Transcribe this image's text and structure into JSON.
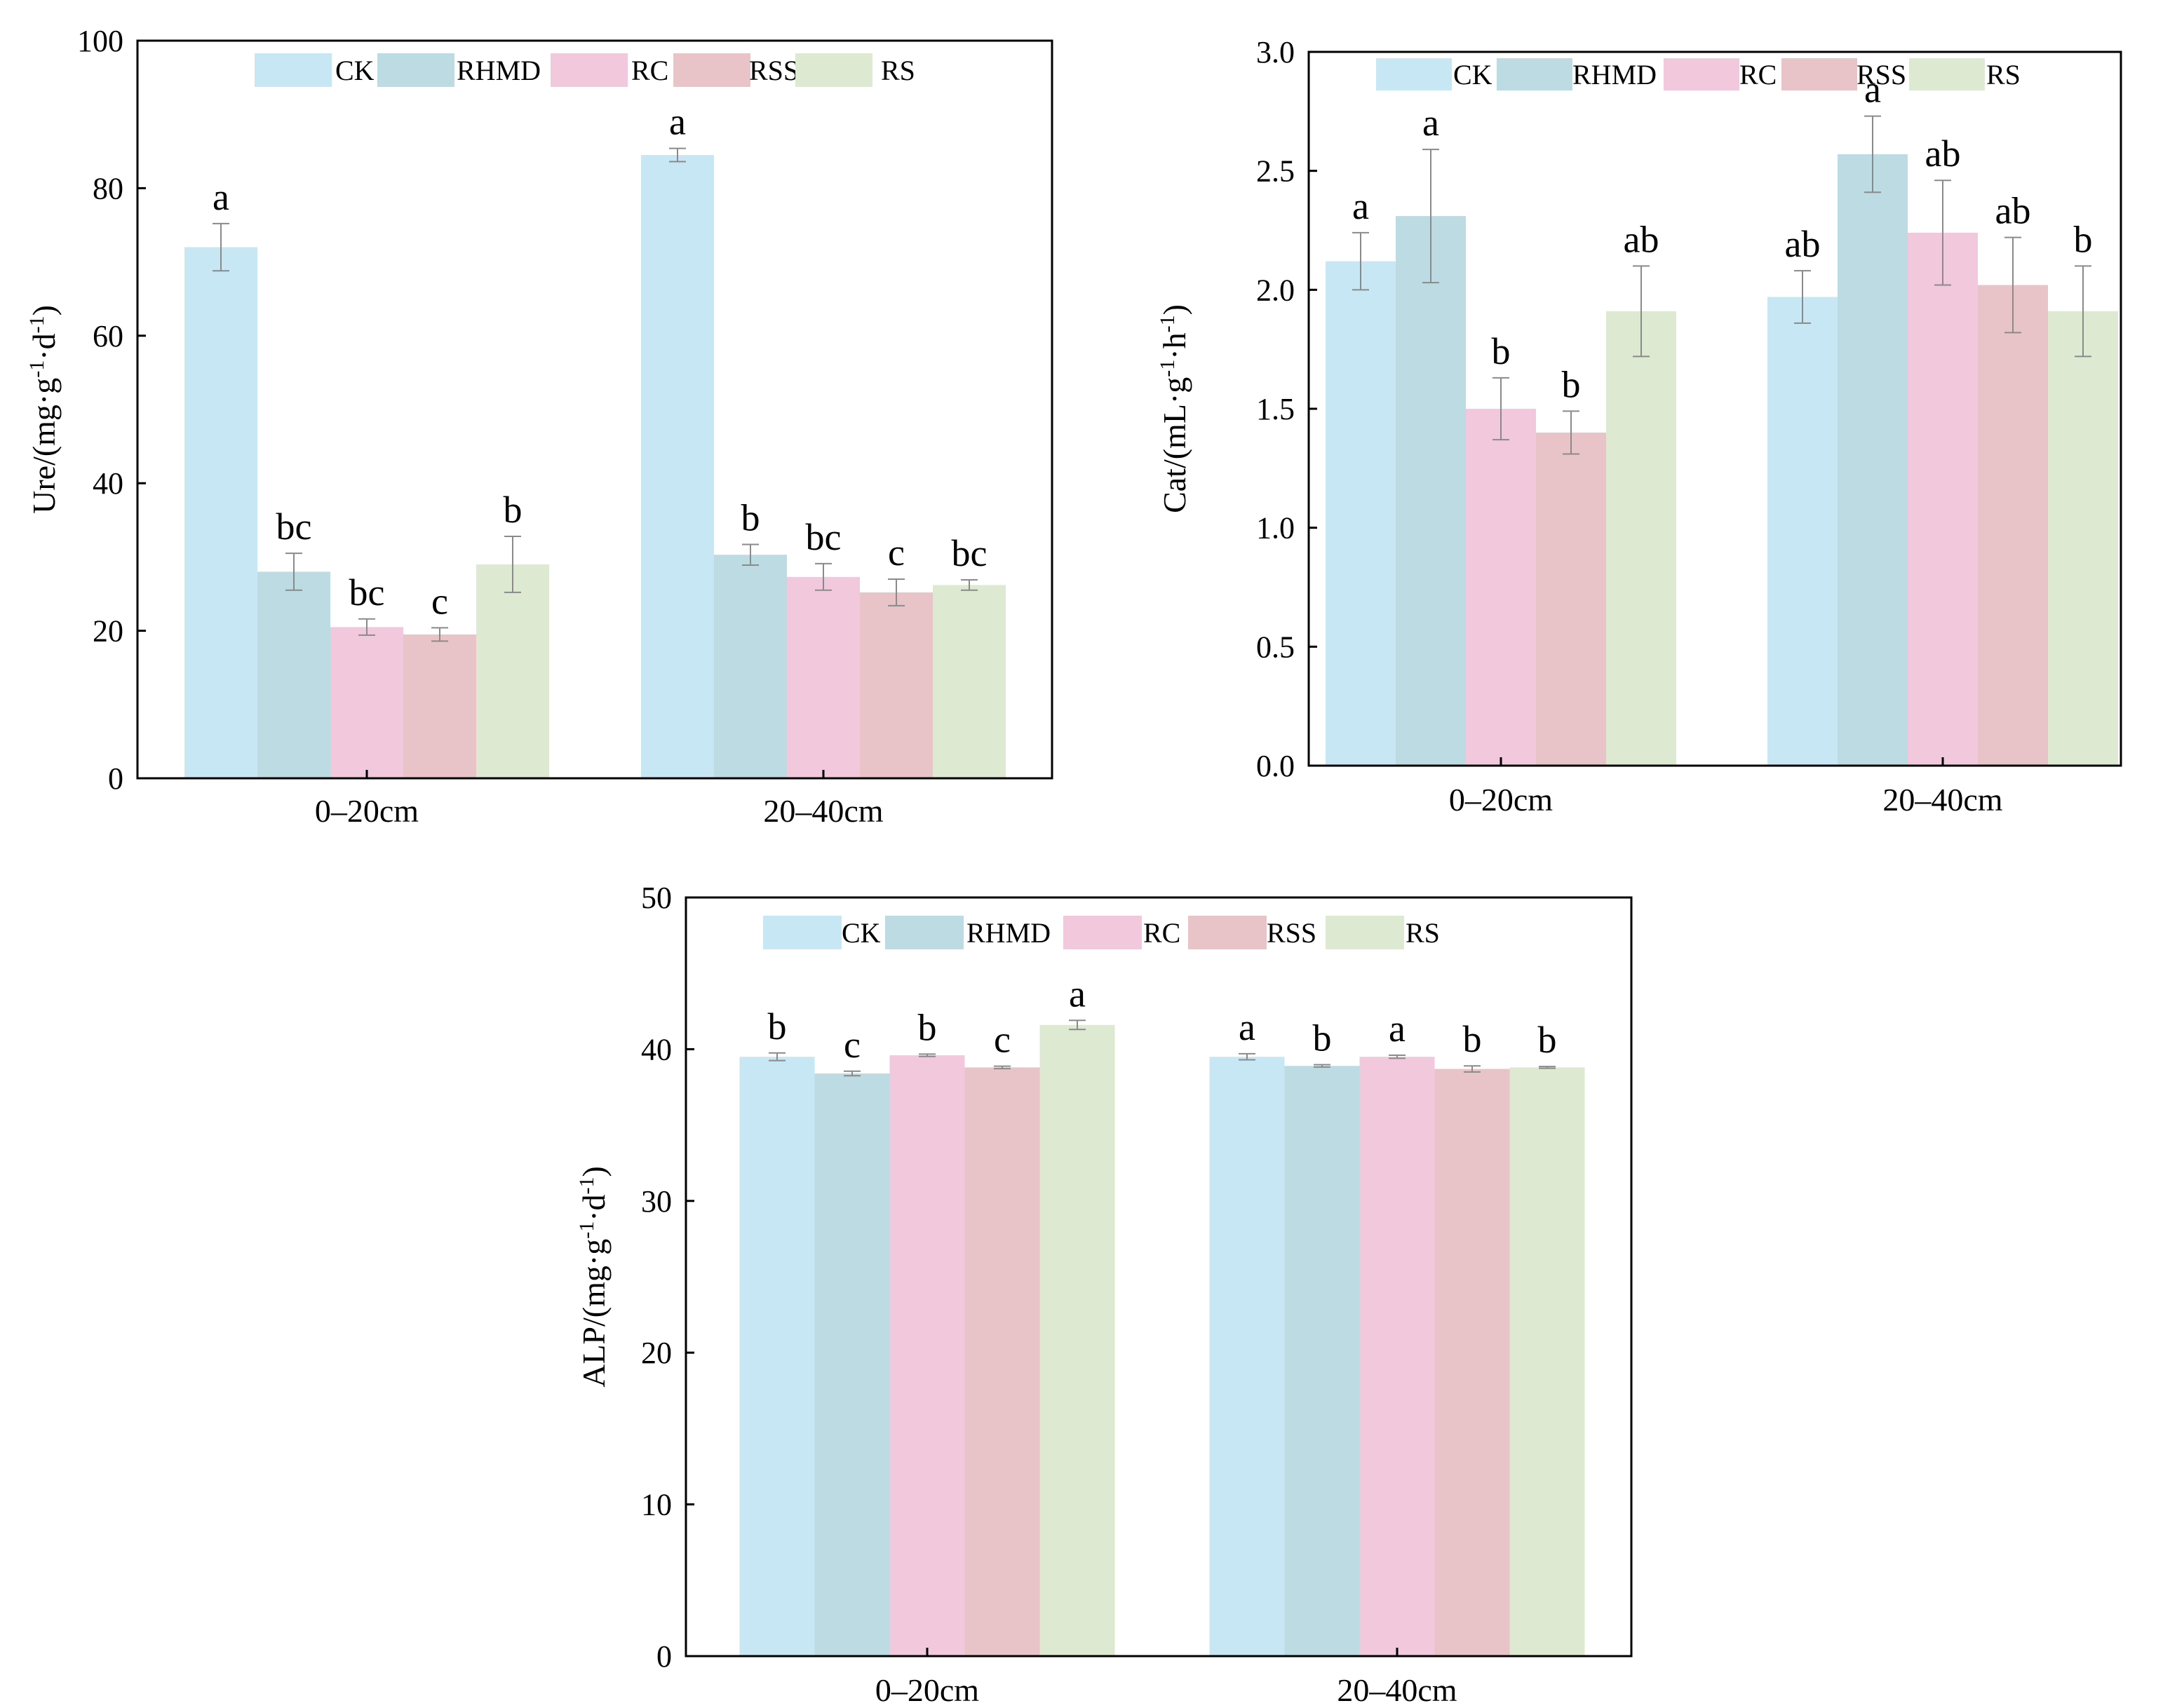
{
  "colors": {
    "CK": "#c7e7f5",
    "RHMD": "#bcdbe2",
    "RC": "#f2c9dc",
    "RSS": "#e8c4c8",
    "RS": "#dde9d1",
    "error_bar": "#8a8a8a",
    "axis": "#000000"
  },
  "chart_data": [
    {
      "id": "ure",
      "type": "bar",
      "ylabel_main": "Ure/(mg·g",
      "ylabel_parts": [
        "Ure/(mg·g",
        "-1",
        "·d",
        "-1",
        ")"
      ],
      "categories": [
        "0–20cm",
        "20–40cm"
      ],
      "series": [
        {
          "name": "CK",
          "values": [
            72.0,
            84.5
          ],
          "errors": [
            3.2,
            0.9
          ],
          "letters": [
            "a",
            "a"
          ]
        },
        {
          "name": "RHMD",
          "values": [
            28.0,
            30.3
          ],
          "errors": [
            2.5,
            1.4
          ],
          "letters": [
            "bc",
            "b"
          ]
        },
        {
          "name": "RC",
          "values": [
            20.5,
            27.3
          ],
          "errors": [
            1.1,
            1.8
          ],
          "letters": [
            "bc",
            "bc"
          ]
        },
        {
          "name": "RSS",
          "values": [
            19.5,
            25.2
          ],
          "errors": [
            0.9,
            1.8
          ],
          "letters": [
            "c",
            "c"
          ]
        },
        {
          "name": "RS",
          "values": [
            29.0,
            26.2
          ],
          "errors": [
            3.8,
            0.7
          ],
          "letters": [
            "b",
            "bc"
          ]
        }
      ],
      "ylim": [
        0,
        100
      ],
      "yticks": [
        "0",
        "20",
        "40",
        "60",
        "80",
        "100"
      ],
      "ytick_values": [
        0,
        20,
        40,
        60,
        80,
        100
      ],
      "legend": [
        "CK",
        "RHMD",
        "RC",
        "RSS",
        "RS"
      ]
    },
    {
      "id": "cat",
      "type": "bar",
      "ylabel_parts": [
        "Cat/(mL·g",
        "-1",
        "·h",
        "-1",
        ")"
      ],
      "categories": [
        "0–20cm",
        "20–40cm"
      ],
      "series": [
        {
          "name": "CK",
          "values": [
            2.12,
            1.97
          ],
          "errors": [
            0.12,
            0.11
          ],
          "letters": [
            "a",
            "ab"
          ]
        },
        {
          "name": "RHMD",
          "values": [
            2.31,
            2.57
          ],
          "errors": [
            0.28,
            0.16
          ],
          "letters": [
            "a",
            "a"
          ]
        },
        {
          "name": "RC",
          "values": [
            1.5,
            2.24
          ],
          "errors": [
            0.13,
            0.22
          ],
          "letters": [
            "b",
            "ab"
          ]
        },
        {
          "name": "RSS",
          "values": [
            1.4,
            2.02
          ],
          "errors": [
            0.09,
            0.2
          ],
          "letters": [
            "b",
            "ab"
          ]
        },
        {
          "name": "RS",
          "values": [
            1.91,
            1.91
          ],
          "errors": [
            0.19,
            0.19
          ],
          "letters": [
            "ab",
            "b"
          ]
        }
      ],
      "ylim": [
        0,
        3.0
      ],
      "yticks": [
        "0.0",
        "0.5",
        "1.0",
        "1.5",
        "2.0",
        "2.5",
        "3.0"
      ],
      "ytick_values": [
        0,
        0.5,
        1.0,
        1.5,
        2.0,
        2.5,
        3.0
      ],
      "legend": [
        "CK",
        "RHMD",
        "RC",
        "RSS",
        "RS"
      ]
    },
    {
      "id": "alp",
      "type": "bar",
      "ylabel_parts": [
        "ALP/(mg·g",
        "-1",
        "·d",
        "-1",
        ")"
      ],
      "categories": [
        "0–20cm",
        "20–40cm"
      ],
      "series": [
        {
          "name": "CK",
          "values": [
            39.5,
            39.5
          ],
          "errors": [
            0.25,
            0.2
          ],
          "letters": [
            "b",
            "a"
          ]
        },
        {
          "name": "RHMD",
          "values": [
            38.4,
            38.9
          ],
          "errors": [
            0.15,
            0.08
          ],
          "letters": [
            "c",
            "b"
          ]
        },
        {
          "name": "RC",
          "values": [
            39.6,
            39.5
          ],
          "errors": [
            0.08,
            0.1
          ],
          "letters": [
            "b",
            "a"
          ]
        },
        {
          "name": "RSS",
          "values": [
            38.8,
            38.7
          ],
          "errors": [
            0.08,
            0.2
          ],
          "letters": [
            "c",
            "b"
          ]
        },
        {
          "name": "RS",
          "values": [
            41.6,
            38.8
          ],
          "errors": [
            0.3,
            0.06
          ],
          "letters": [
            "a",
            "b"
          ]
        }
      ],
      "ylim": [
        0,
        50
      ],
      "yticks": [
        "0",
        "10",
        "20",
        "30",
        "40",
        "50"
      ],
      "ytick_values": [
        0,
        10,
        20,
        30,
        40,
        50
      ],
      "legend": [
        "CK",
        "RHMD",
        "RC",
        "RSS",
        "RS"
      ]
    }
  ]
}
